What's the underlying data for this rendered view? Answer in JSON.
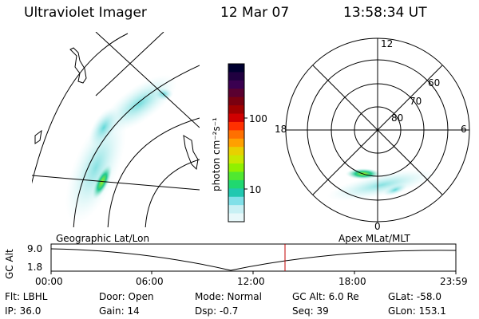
{
  "header": {
    "title": "Ultraviolet Imager",
    "date": "12 Mar 07",
    "time": "13:58:34 UT"
  },
  "colorbar": {
    "label": "photon cm⁻²s⁻¹",
    "ticks": [
      "100",
      "10"
    ],
    "colors": [
      "#000030",
      "#200040",
      "#3a0050",
      "#5a0030",
      "#7a0010",
      "#a00000",
      "#d00000",
      "#ff3000",
      "#ff7000",
      "#ffa000",
      "#e8d000",
      "#c8e800",
      "#90f000",
      "#50e830",
      "#20d870",
      "#20c8b0",
      "#80e0e8",
      "#c8f0f4",
      "#e8f8fa"
    ]
  },
  "geo_map": {
    "label": "Geographic Lat/Lon"
  },
  "polar_map": {
    "label": "Apex MLat/MLT",
    "mlt_labels": {
      "top": "12",
      "right": "6",
      "left": "18",
      "bottom": "0"
    },
    "mlat_labels": [
      "60",
      "70",
      "80"
    ]
  },
  "altitude_plot": {
    "ylabel": "GC Alt",
    "y_ticks": [
      "9.0",
      "1.8"
    ],
    "x_ticks": [
      "00:00",
      "06:00",
      "12:00",
      "18:00",
      "23:59"
    ],
    "current_time_marker_color": "#c00000"
  },
  "status": {
    "flt": "Flt: LBHL",
    "ip": "IP: 36.0",
    "door": "Door: Open",
    "gain": "Gain: 14",
    "mode": "Mode: Normal",
    "dsp": "Dsp:    -0.7",
    "gc_alt": "GC Alt: 6.0 Re",
    "seq": "Seq: 39",
    "glat": "GLat: -58.0",
    "glon": "GLon: 153.1"
  }
}
